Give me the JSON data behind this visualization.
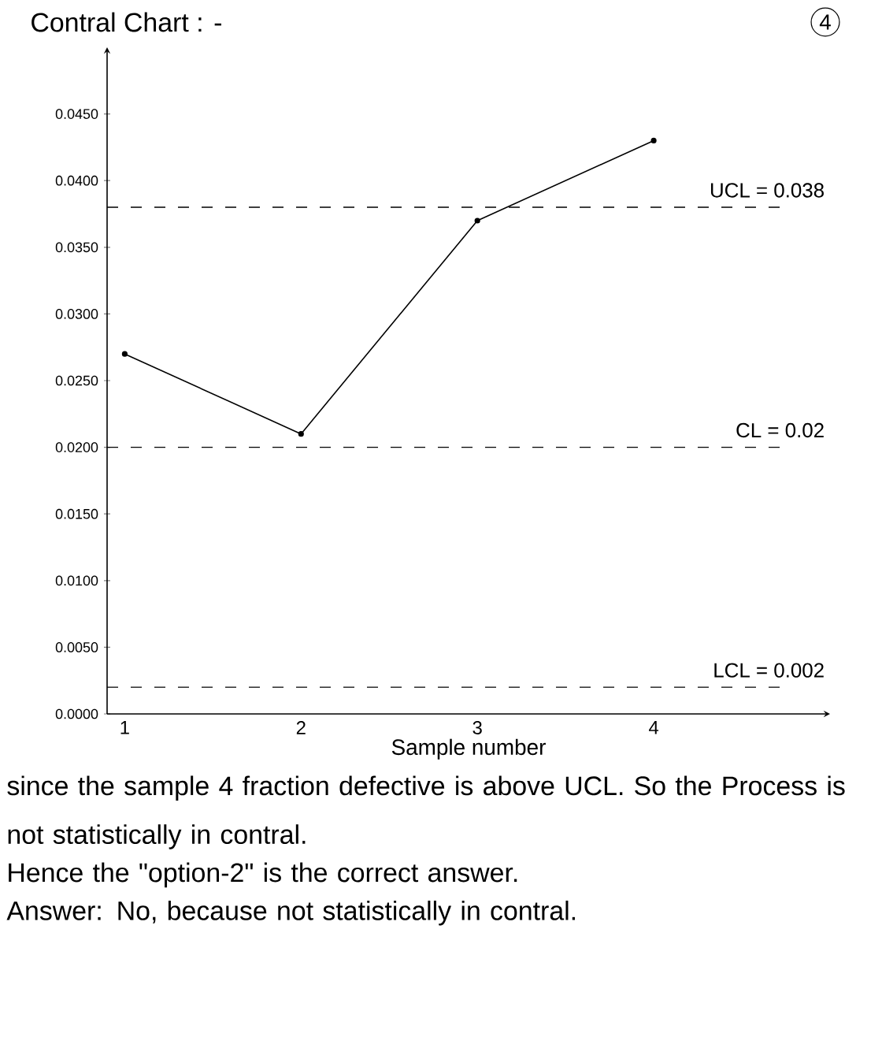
{
  "chart_data": {
    "type": "line",
    "title": "Contral Chart : -",
    "xlabel": "Sample number",
    "categories": [
      "1",
      "2",
      "3",
      "4"
    ],
    "values": [
      0.027,
      0.021,
      0.037,
      0.043
    ],
    "color": "#000000",
    "marker": "circle",
    "line_style": "solid",
    "ylim": [
      0,
      0.05
    ],
    "yticks": [
      {
        "value": 0,
        "label": "0.0000"
      },
      {
        "value": 0.005,
        "label": "0.0050"
      },
      {
        "value": 0.01,
        "label": "0.0100"
      },
      {
        "value": 0.015,
        "label": "0.0150"
      },
      {
        "value": 0.02,
        "label": "0.0200"
      },
      {
        "value": 0.025,
        "label": "0.0250"
      },
      {
        "value": 0.03,
        "label": "0.0300"
      },
      {
        "value": 0.035,
        "label": "0.0350"
      },
      {
        "value": 0.04,
        "label": "0.0400"
      },
      {
        "value": 0.045,
        "label": "0.0450"
      }
    ],
    "ref_lines": [
      {
        "axis": "y",
        "value": 0.038,
        "label": "UCL = 0.038",
        "line_style": "dashed"
      },
      {
        "axis": "y",
        "value": 0.02,
        "label": "CL = 0.02",
        "line_style": "dashed"
      },
      {
        "axis": "y",
        "value": 0.002,
        "label": "LCL = 0.002",
        "line_style": "dashed"
      }
    ],
    "annotations": [
      "4",
      "since the sample 4 fraction defective is above UCL. So the Process is not statistically in contral.",
      "Hence the \"option-2\" is the correct answer.",
      "Answer: No, because not statistically in contral."
    ]
  }
}
